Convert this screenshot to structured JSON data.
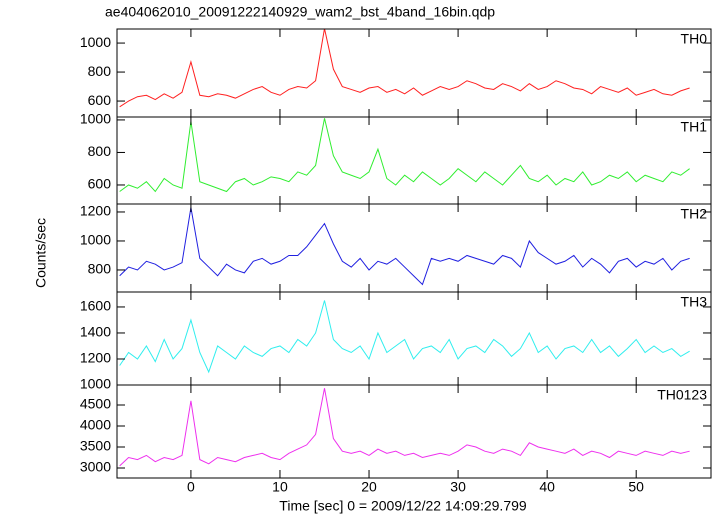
{
  "chart_data": {
    "type": "line",
    "title": "ae404062010_20091222140929_wam2_bst_4band_16bin.qdp",
    "xlabel": "Time [sec] 0 = 2009/12/22 14:09:29.799",
    "ylabel": "Counts/sec",
    "xlim": [
      -8.3,
      58.4
    ],
    "xticks": [
      0,
      10,
      20,
      30,
      40,
      50
    ],
    "x": [
      -8,
      -7,
      -6,
      -5,
      -4,
      -3,
      -2,
      -1,
      0,
      1,
      2,
      3,
      4,
      5,
      6,
      7,
      8,
      9,
      10,
      11,
      12,
      13,
      14,
      15,
      16,
      17,
      18,
      19,
      20,
      21,
      22,
      23,
      24,
      25,
      26,
      27,
      28,
      29,
      30,
      31,
      32,
      33,
      34,
      35,
      36,
      37,
      38,
      39,
      40,
      41,
      42,
      43,
      44,
      45,
      46,
      47,
      48,
      49,
      50,
      51,
      52,
      53,
      54,
      55,
      56
    ],
    "series": [
      {
        "name": "TH0",
        "color": "#ff2020",
        "ylim": [
          490,
          1097
        ],
        "yticks": [
          600,
          800,
          1000
        ],
        "values": [
          560,
          600,
          630,
          640,
          610,
          650,
          620,
          660,
          870,
          640,
          630,
          650,
          640,
          620,
          650,
          680,
          700,
          660,
          640,
          680,
          700,
          690,
          740,
          1100,
          820,
          700,
          680,
          660,
          690,
          700,
          660,
          680,
          650,
          690,
          640,
          670,
          700,
          680,
          700,
          740,
          720,
          690,
          680,
          720,
          700,
          670,
          720,
          680,
          700,
          740,
          720,
          690,
          680,
          650,
          700,
          680,
          660,
          690,
          640,
          660,
          680,
          650,
          640,
          670,
          690
        ]
      },
      {
        "name": "TH1",
        "color": "#30ee30",
        "ylim": [
          483,
          1018
        ],
        "yticks": [
          600,
          800,
          1000
        ],
        "values": [
          560,
          600,
          580,
          620,
          560,
          640,
          600,
          580,
          990,
          620,
          600,
          580,
          560,
          620,
          640,
          600,
          620,
          650,
          640,
          620,
          680,
          660,
          720,
          1010,
          780,
          680,
          660,
          640,
          680,
          820,
          640,
          600,
          660,
          620,
          680,
          640,
          600,
          640,
          700,
          660,
          620,
          680,
          640,
          600,
          660,
          720,
          640,
          620,
          660,
          600,
          640,
          620,
          680,
          600,
          620,
          660,
          640,
          680,
          620,
          660,
          640,
          620,
          680,
          660,
          700
        ]
      },
      {
        "name": "TH2",
        "color": "#2020e0",
        "ylim": [
          648,
          1255
        ],
        "yticks": [
          800,
          1000,
          1200
        ],
        "values": [
          760,
          820,
          800,
          860,
          840,
          800,
          820,
          850,
          1230,
          880,
          820,
          760,
          840,
          800,
          780,
          860,
          880,
          840,
          860,
          900,
          900,
          960,
          1040,
          1120,
          980,
          860,
          820,
          880,
          800,
          860,
          840,
          880,
          820,
          760,
          700,
          880,
          860,
          880,
          860,
          900,
          880,
          860,
          840,
          900,
          880,
          820,
          1000,
          920,
          880,
          840,
          860,
          900,
          820,
          880,
          840,
          780,
          860,
          880,
          820,
          860,
          840,
          880,
          800,
          860,
          880
        ]
      },
      {
        "name": "TH3",
        "color": "#30eeee",
        "ylim": [
          1000,
          1715
        ],
        "yticks": [
          1000,
          1200,
          1400,
          1600
        ],
        "values": [
          1150,
          1250,
          1200,
          1300,
          1180,
          1350,
          1200,
          1280,
          1500,
          1250,
          1100,
          1300,
          1250,
          1200,
          1300,
          1250,
          1220,
          1280,
          1300,
          1250,
          1350,
          1300,
          1400,
          1650,
          1350,
          1280,
          1250,
          1300,
          1200,
          1400,
          1250,
          1300,
          1350,
          1200,
          1280,
          1300,
          1250,
          1350,
          1200,
          1280,
          1300,
          1250,
          1350,
          1300,
          1220,
          1280,
          1400,
          1250,
          1300,
          1200,
          1280,
          1300,
          1250,
          1350,
          1250,
          1300,
          1220,
          1280,
          1350,
          1250,
          1300,
          1250,
          1280,
          1220,
          1260
        ]
      },
      {
        "name": "TH0123",
        "color": "#ee30ee",
        "ylim": [
          2762,
          4976
        ],
        "yticks": [
          3000,
          3500,
          4000,
          4500
        ],
        "values": [
          3050,
          3250,
          3200,
          3300,
          3150,
          3250,
          3200,
          3300,
          4600,
          3200,
          3100,
          3250,
          3200,
          3150,
          3250,
          3300,
          3350,
          3250,
          3200,
          3350,
          3450,
          3550,
          3800,
          4900,
          3700,
          3400,
          3350,
          3400,
          3300,
          3450,
          3350,
          3400,
          3300,
          3350,
          3250,
          3300,
          3350,
          3300,
          3400,
          3550,
          3500,
          3400,
          3350,
          3450,
          3400,
          3300,
          3600,
          3500,
          3450,
          3400,
          3350,
          3450,
          3300,
          3400,
          3350,
          3250,
          3400,
          3350,
          3300,
          3400,
          3350,
          3300,
          3400,
          3350,
          3400
        ]
      }
    ]
  }
}
